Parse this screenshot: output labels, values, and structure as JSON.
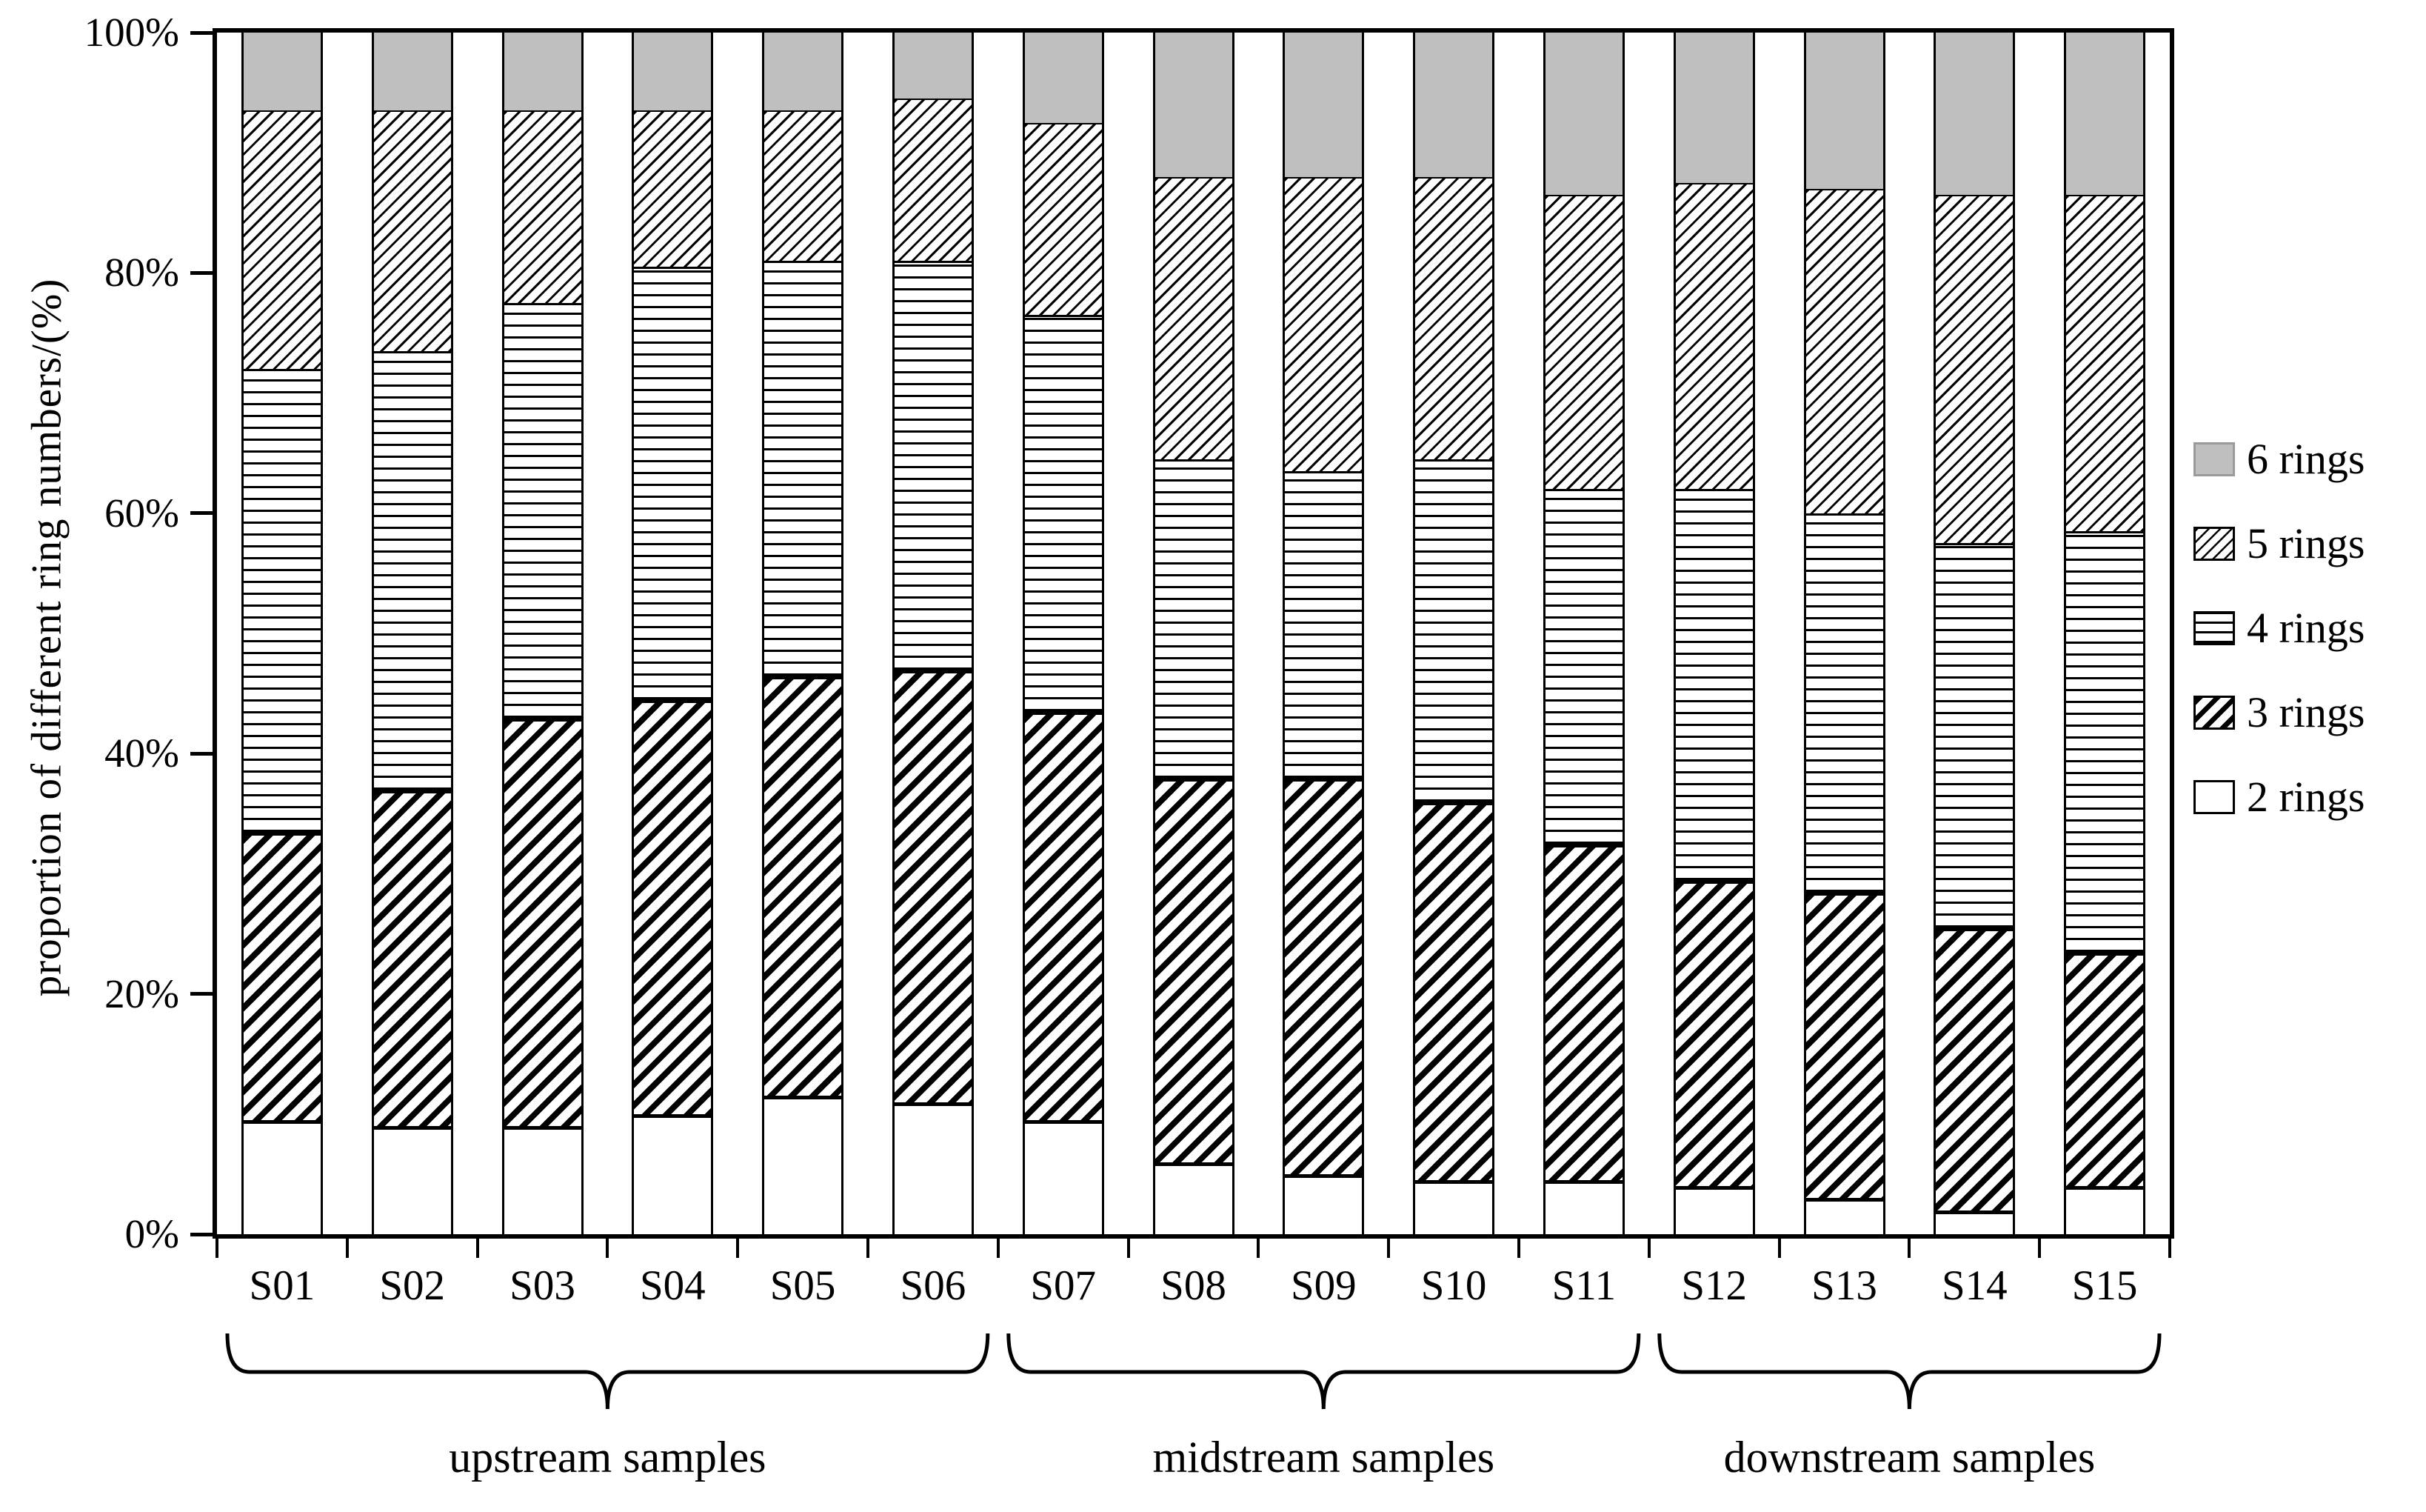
{
  "chart_data": {
    "type": "bar",
    "stacked": true,
    "percent_stacked": true,
    "title": "",
    "xlabel": "",
    "ylabel": "proportion of different ring numbers/(%)",
    "ylim": [
      0,
      100
    ],
    "grid": false,
    "y_ticks": [
      "0%",
      "20%",
      "40%",
      "60%",
      "80%",
      "100%"
    ],
    "categories": [
      "S01",
      "S02",
      "S03",
      "S04",
      "S05",
      "S06",
      "S07",
      "S08",
      "S09",
      "S10",
      "S11",
      "S12",
      "S13",
      "S14",
      "S15"
    ],
    "series": [
      {
        "name": "2 rings",
        "pattern": "pat-white",
        "values": [
          9.5,
          9,
          9,
          10,
          11.5,
          11,
          9.5,
          6,
          5,
          4.5,
          4.5,
          4,
          3,
          2,
          4
        ]
      },
      {
        "name": "3 rings",
        "pattern": "pat-bold-diagonal",
        "values": [
          24,
          28,
          34,
          34.5,
          35,
          36,
          34,
          32,
          33,
          31.5,
          28,
          25.5,
          25.5,
          23.5,
          19.5
        ]
      },
      {
        "name": "4 rings",
        "pattern": "pat-horizontal",
        "values": [
          38.5,
          36.5,
          34.5,
          36,
          34.5,
          34,
          33,
          26.5,
          25.5,
          28.5,
          29.5,
          32.5,
          31.5,
          32,
          35
        ]
      },
      {
        "name": "5 rings",
        "pattern": "pat-light-diagonal",
        "values": [
          21.5,
          20,
          16,
          13,
          12.5,
          13.5,
          16,
          23.5,
          24.5,
          23.5,
          24.5,
          25.5,
          27,
          29,
          28
        ]
      },
      {
        "name": "6 rings",
        "pattern": "pat-gray",
        "values": [
          6.5,
          6.5,
          6.5,
          6.5,
          6.5,
          5.5,
          7.5,
          12,
          12,
          12,
          13.5,
          12.5,
          13,
          13.5,
          13.5
        ]
      }
    ],
    "legend": {
      "position": "right",
      "items": [
        "6 rings",
        "5 rings",
        "4 rings",
        "3 rings",
        "2 rings"
      ]
    },
    "groups": [
      {
        "label": "upstream samples",
        "start": "S01",
        "end": "S06"
      },
      {
        "label": "midstream samples",
        "start": "S07",
        "end": "S11"
      },
      {
        "label": "downstream samples",
        "start": "S12",
        "end": "S15"
      }
    ],
    "colors": {
      "six_rings_gray": "#bfbfbf",
      "ink": "#000000",
      "background": "#ffffff"
    }
  }
}
